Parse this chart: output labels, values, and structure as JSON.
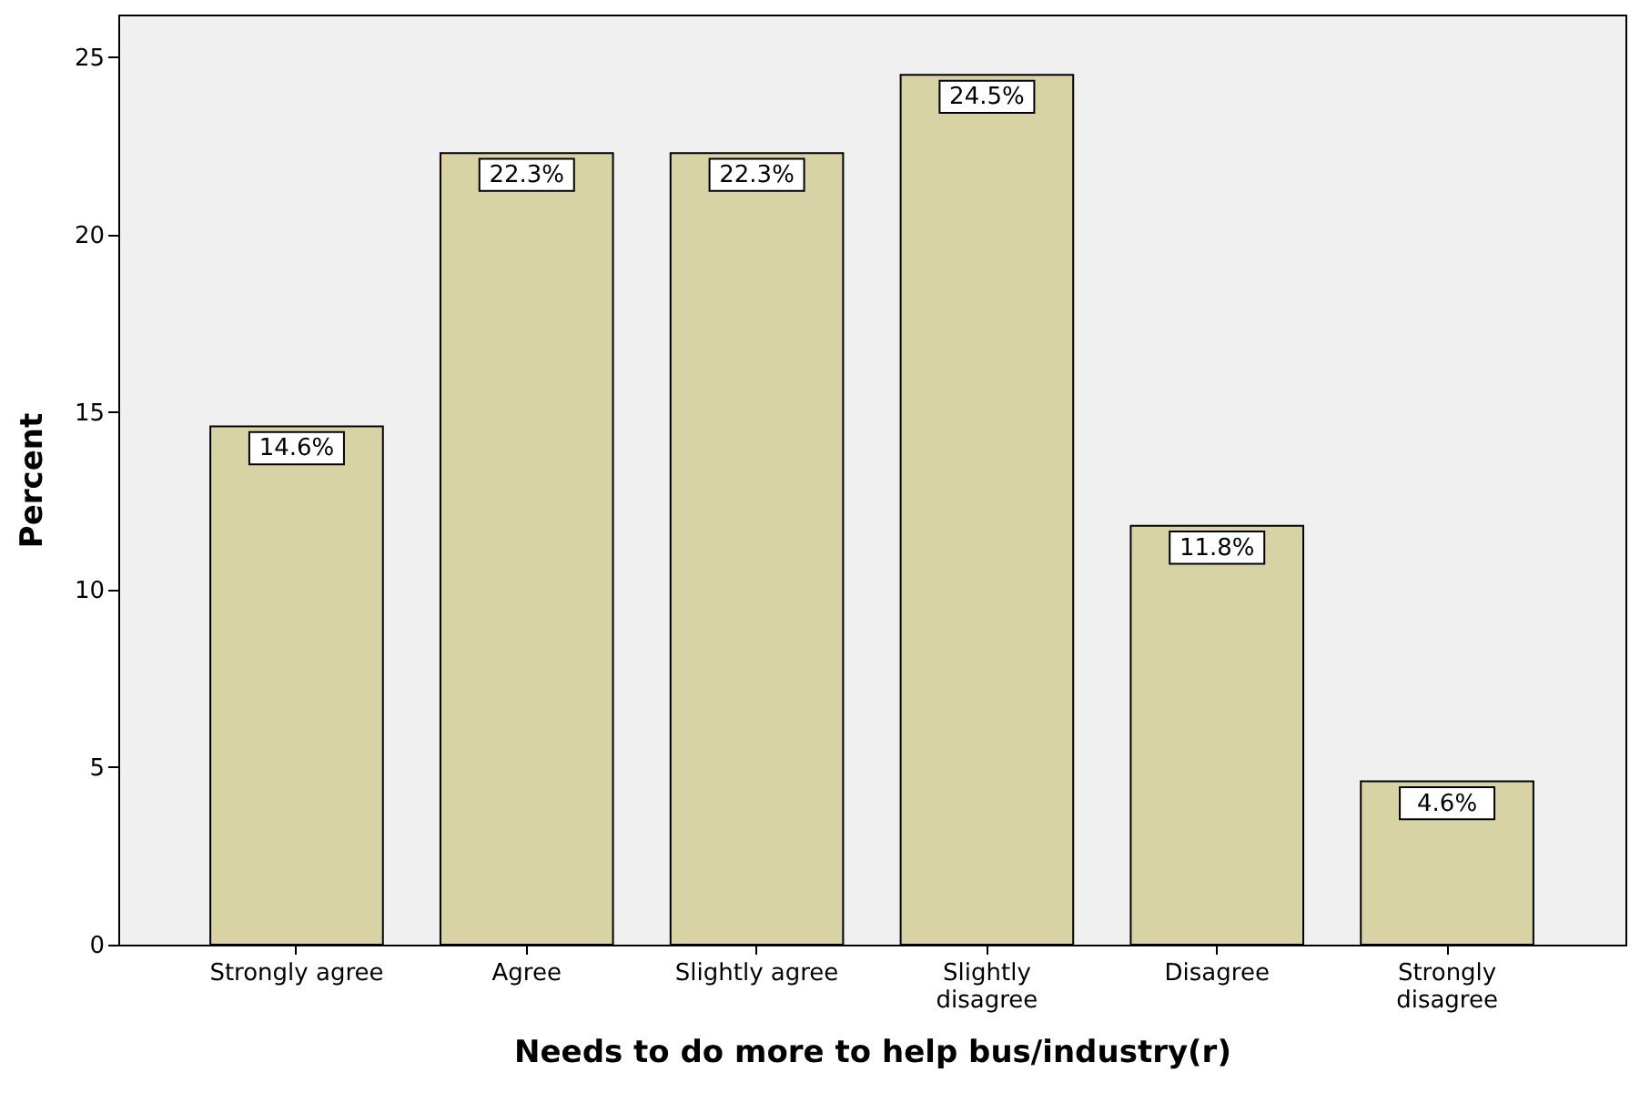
{
  "chart_data": {
    "type": "bar",
    "xlabel": "Needs to do more to help bus/industry(r)",
    "ylabel": "Percent",
    "categories": [
      "Strongly agree",
      "Agree",
      "Slightly agree",
      "Slightly disagree",
      "Disagree",
      "Strongly disagree"
    ],
    "values": [
      14.6,
      22.3,
      22.3,
      24.5,
      11.8,
      4.6
    ],
    "value_labels": [
      "14.6%",
      "22.3%",
      "22.3%",
      "24.5%",
      "11.8%",
      "4.6%"
    ],
    "color": "#d8d3a5",
    "ylim": [
      0,
      26.2
    ],
    "yticks": [
      0,
      5,
      10,
      15,
      20,
      25
    ],
    "grid": false
  }
}
